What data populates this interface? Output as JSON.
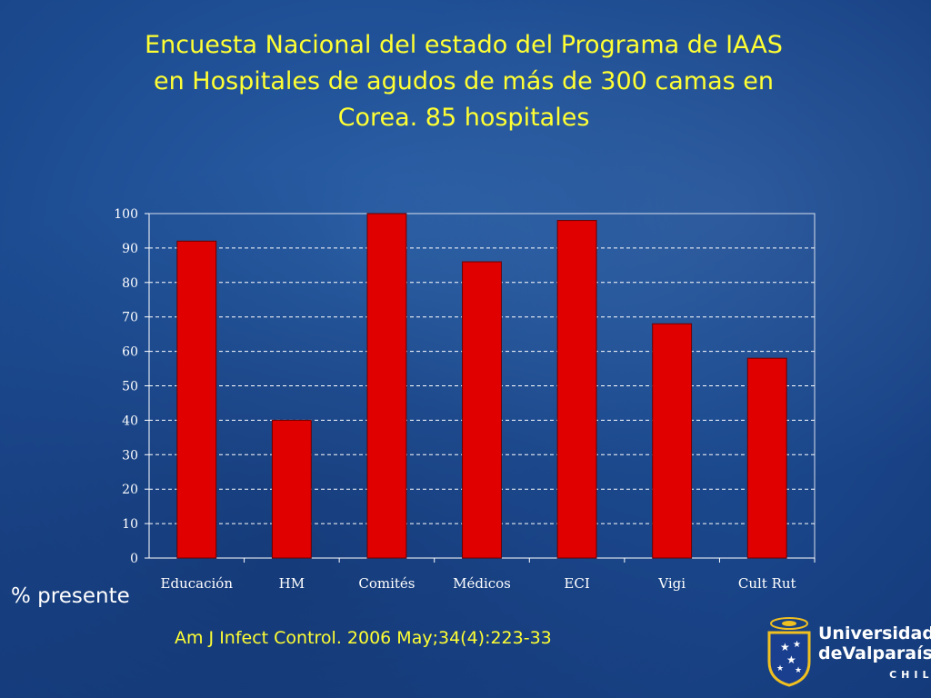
{
  "slide": {
    "title_lines": [
      "Encuesta Nacional del estado del Programa de IAAS",
      "en Hospitales de agudos de más de 300 camas en",
      "Corea. 85 hospitales"
    ],
    "y_caption": "% presente",
    "citation": "Am J Infect Control. 2006 May;34(4):223-33",
    "logo": {
      "line1": "Universidad",
      "line2": "deValparaíso",
      "line3": "CHILE"
    }
  },
  "colors": {
    "bar": "#e00000",
    "title": "#ffff33",
    "axis_text": "#ffffff",
    "gridline": "#ffffff"
  },
  "chart_data": {
    "type": "bar",
    "categories": [
      "Educación",
      "HM",
      "Comités",
      "Médicos",
      "ECI",
      "Vigi",
      "Cult Rut"
    ],
    "values": [
      92,
      40,
      100,
      86,
      98,
      68,
      58
    ],
    "yticks": [
      "0",
      "10",
      "20",
      "30",
      "40",
      "50",
      "60",
      "70",
      "80",
      "90",
      "100"
    ],
    "ylim": [
      0,
      100
    ],
    "grid": true,
    "gridline_style": "dashed"
  }
}
